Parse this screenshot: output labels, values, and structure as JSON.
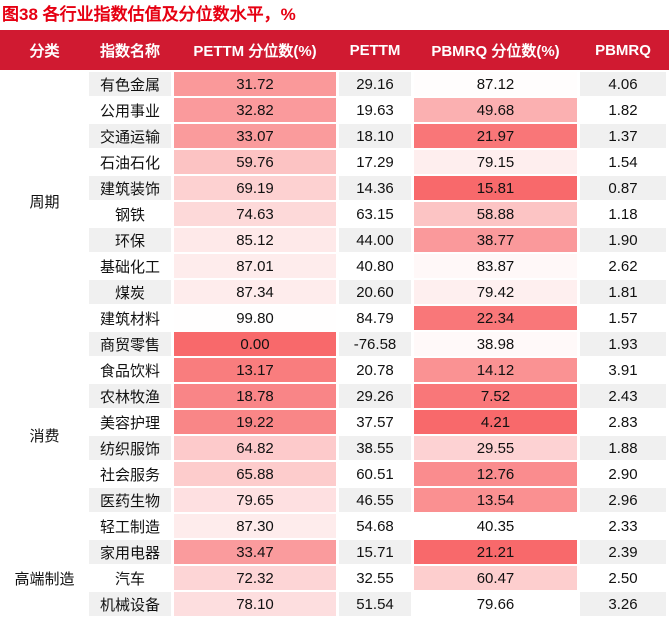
{
  "title": "图38  各行业指数估值及分位数水平，%",
  "colors": {
    "title_red": "#E60012",
    "header_bg": "#D01A31",
    "header_text": "#FFFFFF",
    "row_stripe": "#F0F0F0",
    "heat_scale_strong_red": "#F8696B",
    "heat_scale_weak_white": "#FFFFFF",
    "body_text": "#111111"
  },
  "chart_data": {
    "type": "table",
    "title": "图38  各行业指数估值及分位数水平，%",
    "columns": [
      "分类",
      "指数名称",
      "PETTM 分位数(%)",
      "PETTM",
      "PBMRQ 分位数(%)",
      "PBMRQ"
    ],
    "heatmap_columns": [
      "PETTM 分位数(%)",
      "PBMRQ 分位数(%)"
    ],
    "groups": [
      {
        "category": "周期",
        "rows": [
          {
            "name": "有色金属",
            "pettm_pct": "31.72",
            "pettm": "29.16",
            "pbmrq_pct": "87.12",
            "pbmrq": "4.06",
            "pettm_pct_color": "#FA999A",
            "pbmrq_pct_color": "#FFFDFD"
          },
          {
            "name": "公用事业",
            "pettm_pct": "32.82",
            "pettm": "19.63",
            "pbmrq_pct": "49.68",
            "pbmrq": "1.82",
            "pettm_pct_color": "#FA9A9C",
            "pbmrq_pct_color": "#FBB0B1"
          },
          {
            "name": "交通运输",
            "pettm_pct": "33.07",
            "pettm": "18.10",
            "pbmrq_pct": "21.97",
            "pbmrq": "1.37",
            "pettm_pct_color": "#FA9B9C",
            "pbmrq_pct_color": "#F97678"
          },
          {
            "name": "石油石化",
            "pettm_pct": "59.76",
            "pettm": "17.29",
            "pbmrq_pct": "79.15",
            "pbmrq": "1.54",
            "pettm_pct_color": "#FCC3C3",
            "pbmrq_pct_color": "#FEEEEE"
          },
          {
            "name": "建筑装饰",
            "pettm_pct": "69.19",
            "pettm": "14.36",
            "pbmrq_pct": "15.81",
            "pbmrq": "0.87",
            "pettm_pct_color": "#FDD1D1",
            "pbmrq_pct_color": "#F8696B"
          },
          {
            "name": "钢铁",
            "pettm_pct": "74.63",
            "pettm": "63.15",
            "pbmrq_pct": "58.88",
            "pbmrq": "1.18",
            "pettm_pct_color": "#FDD9D9",
            "pbmrq_pct_color": "#FCC4C4"
          },
          {
            "name": "环保",
            "pettm_pct": "85.12",
            "pettm": "44.00",
            "pbmrq_pct": "38.77",
            "pbmrq": "1.90",
            "pettm_pct_color": "#FEE9E9",
            "pbmrq_pct_color": "#FA999B"
          },
          {
            "name": "基础化工",
            "pettm_pct": "87.01",
            "pettm": "40.80",
            "pbmrq_pct": "83.87",
            "pbmrq": "2.62",
            "pettm_pct_color": "#FEECEC",
            "pbmrq_pct_color": "#FFF8F8"
          },
          {
            "name": "煤炭",
            "pettm_pct": "87.34",
            "pettm": "20.60",
            "pbmrq_pct": "79.42",
            "pbmrq": "1.81",
            "pettm_pct_color": "#FEECEC",
            "pbmrq_pct_color": "#FEEFEF"
          },
          {
            "name": "建筑材料",
            "pettm_pct": "99.80",
            "pettm": "84.79",
            "pbmrq_pct": "22.34",
            "pbmrq": "1.57",
            "pettm_pct_color": "#FFFEFE",
            "pbmrq_pct_color": "#F97779"
          }
        ]
      },
      {
        "category": "消费",
        "rows": [
          {
            "name": "商贸零售",
            "pettm_pct": "0.00",
            "pettm": "-76.58",
            "pbmrq_pct": "38.98",
            "pbmrq": "1.93",
            "pettm_pct_color": "#F8696B",
            "pbmrq_pct_color": "#FFF9F9"
          },
          {
            "name": "食品饮料",
            "pettm_pct": "13.17",
            "pettm": "20.78",
            "pbmrq_pct": "14.12",
            "pbmrq": "3.91",
            "pettm_pct_color": "#F97D7E",
            "pbmrq_pct_color": "#FA9293"
          },
          {
            "name": "农林牧渔",
            "pettm_pct": "18.78",
            "pettm": "29.26",
            "pbmrq_pct": "7.52",
            "pbmrq": "2.43",
            "pettm_pct_color": "#F98587",
            "pbmrq_pct_color": "#F97779"
          },
          {
            "name": "美容护理",
            "pettm_pct": "19.22",
            "pettm": "37.57",
            "pbmrq_pct": "4.21",
            "pbmrq": "2.83",
            "pettm_pct_color": "#F98687",
            "pbmrq_pct_color": "#F8696B"
          },
          {
            "name": "纺织服饰",
            "pettm_pct": "64.82",
            "pettm": "38.55",
            "pbmrq_pct": "29.55",
            "pbmrq": "1.88",
            "pettm_pct_color": "#FDCACB",
            "pbmrq_pct_color": "#FDD2D3"
          },
          {
            "name": "社会服务",
            "pettm_pct": "65.88",
            "pettm": "60.51",
            "pbmrq_pct": "12.76",
            "pbmrq": "2.90",
            "pettm_pct_color": "#FDCCCC",
            "pbmrq_pct_color": "#FA8C8E"
          },
          {
            "name": "医药生物",
            "pettm_pct": "79.65",
            "pettm": "46.55",
            "pbmrq_pct": "13.54",
            "pbmrq": "2.96",
            "pettm_pct_color": "#FEE0E1",
            "pbmrq_pct_color": "#FA9091"
          },
          {
            "name": "轻工制造",
            "pettm_pct": "87.30",
            "pettm": "54.68",
            "pbmrq_pct": "40.35",
            "pbmrq": "2.33",
            "pettm_pct_color": "#FEECEC",
            "pbmrq_pct_color": "#FFFFFF"
          }
        ]
      },
      {
        "category": "高端制造",
        "rows": [
          {
            "name": "家用电器",
            "pettm_pct": "33.47",
            "pettm": "15.71",
            "pbmrq_pct": "21.21",
            "pbmrq": "2.39",
            "pettm_pct_color": "#FA9B9D",
            "pbmrq_pct_color": "#F8696B"
          },
          {
            "name": "汽车",
            "pettm_pct": "72.32",
            "pettm": "32.55",
            "pbmrq_pct": "60.47",
            "pbmrq": "2.50",
            "pettm_pct_color": "#FDD5D6",
            "pbmrq_pct_color": "#FDCECE"
          },
          {
            "name": "机械设备",
            "pettm_pct": "78.10",
            "pettm": "51.54",
            "pbmrq_pct": "79.66",
            "pbmrq": "3.26",
            "pettm_pct_color": "#FDDEDF",
            "pbmrq_pct_color": "#FFFFFF"
          }
        ]
      }
    ]
  }
}
